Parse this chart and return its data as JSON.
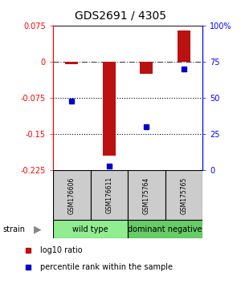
{
  "title": "GDS2691 / 4305",
  "samples": [
    "GSM176606",
    "GSM176611",
    "GSM175764",
    "GSM175765"
  ],
  "log10_ratio": [
    -0.005,
    -0.195,
    -0.025,
    0.065
  ],
  "percentile_rank": [
    48,
    3,
    30,
    70
  ],
  "ylim_left": [
    -0.225,
    0.075
  ],
  "ylim_right": [
    0,
    100
  ],
  "yticks_left": [
    0.075,
    0,
    -0.075,
    -0.15,
    -0.225
  ],
  "yticks_right": [
    100,
    75,
    50,
    25,
    0
  ],
  "bar_color": "#bb1111",
  "dot_color": "#0000cc",
  "bg_color": "#ffffff",
  "sample_box_color": "#cccccc",
  "group_wt_color": "#90ee90",
  "group_dn_color": "#66cc66",
  "label_log10": "log10 ratio",
  "label_pct": "percentile rank within the sample",
  "strain_label": "strain",
  "bar_width": 0.35,
  "title_fontsize": 10,
  "tick_fontsize": 7,
  "sample_fontsize": 5.5,
  "group_fontsize": 7,
  "legend_fontsize": 7
}
